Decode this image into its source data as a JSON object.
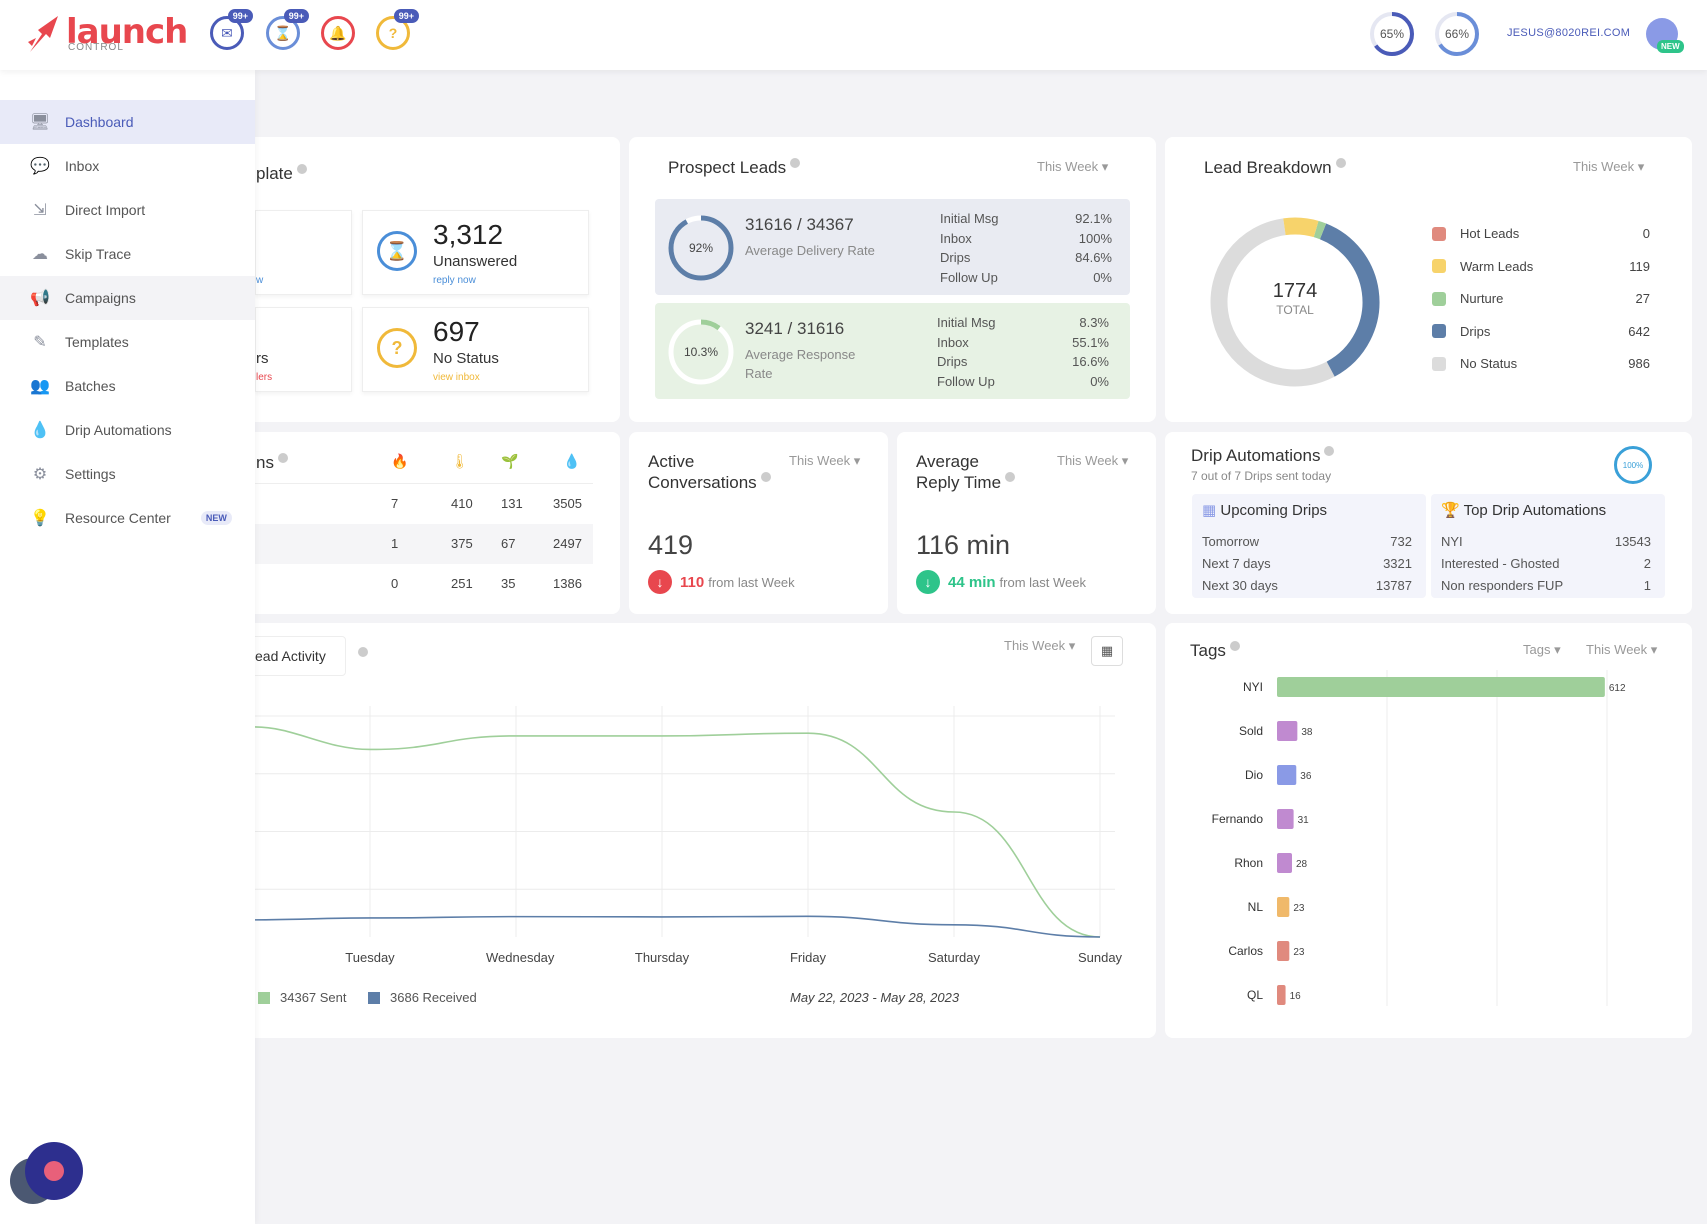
{
  "header": {
    "logo_text": "launch",
    "logo_sub": "CONTROL",
    "notifications": [
      {
        "name": "messages",
        "badge": "99+",
        "color": "#4a5bb8",
        "glyph": "✉"
      },
      {
        "name": "unanswered",
        "badge": "99+",
        "color": "#6a8ed8",
        "glyph": "⌛"
      },
      {
        "name": "alerts",
        "badge": "",
        "color": "#e8474e",
        "glyph": "🔔"
      },
      {
        "name": "no-status",
        "badge": "99+",
        "color": "#f0b93a",
        "glyph": "?"
      }
    ],
    "progress": [
      {
        "label": "65%",
        "value": 0.65,
        "color": "#4a5bb8"
      },
      {
        "label": "66%",
        "value": 0.66,
        "color": "#6a8ed8"
      }
    ],
    "user_email": "JESUS@8020REI.COM",
    "new_chip": "NEW"
  },
  "sidebar": {
    "items": [
      {
        "label": "Dashboard",
        "icon": "monitor-icon",
        "glyph": "🖥"
      },
      {
        "label": "Inbox",
        "icon": "chat-icon",
        "glyph": "💬"
      },
      {
        "label": "Direct Import",
        "icon": "import-icon",
        "glyph": "⇲"
      },
      {
        "label": "Skip Trace",
        "icon": "cloud-upload-icon",
        "glyph": "☁"
      },
      {
        "label": "Campaigns",
        "icon": "megaphone-icon",
        "glyph": "📢"
      },
      {
        "label": "Templates",
        "icon": "edit-icon",
        "glyph": "✎"
      },
      {
        "label": "Batches",
        "icon": "users-icon",
        "glyph": "👥"
      },
      {
        "label": "Drip Automations",
        "icon": "drop-icon",
        "glyph": "💧"
      },
      {
        "label": "Settings",
        "icon": "gear-icon",
        "glyph": "⚙"
      },
      {
        "label": "Resource Center",
        "icon": "lightbulb-icon",
        "glyph": "💡",
        "badge": "NEW"
      }
    ]
  },
  "template_card": {
    "title": "plate",
    "left_top_link": "w",
    "left_bottom_text": "rs",
    "left_bottom_link": "lers",
    "unanswered": {
      "value": "3,312",
      "label": "Unanswered",
      "link": "reply now"
    },
    "no_status": {
      "value": "697",
      "label": "No Status",
      "link": "view inbox"
    }
  },
  "prospect_leads": {
    "title": "Prospect Leads",
    "period": "This Week",
    "delivery": {
      "pct_label": "92%",
      "pct": 0.92,
      "main": "31616 / 34367",
      "sub": "Average Delivery Rate",
      "stats": [
        {
          "label": "Initial Msg",
          "value": "92.1%"
        },
        {
          "label": "Inbox",
          "value": "100%"
        },
        {
          "label": "Drips",
          "value": "84.6%"
        },
        {
          "label": "Follow Up",
          "value": "0%"
        }
      ]
    },
    "response": {
      "pct_label": "10.3%",
      "pct": 0.103,
      "main": "3241 / 31616",
      "sub": "Average Response Rate",
      "stats": [
        {
          "label": "Initial Msg",
          "value": "8.3%"
        },
        {
          "label": "Inbox",
          "value": "55.1%"
        },
        {
          "label": "Drips",
          "value": "16.6%"
        },
        {
          "label": "Follow Up",
          "value": "0%"
        }
      ]
    }
  },
  "lead_breakdown": {
    "title": "Lead Breakdown",
    "period": "This Week",
    "total": "1774",
    "total_label": "TOTAL",
    "items": [
      {
        "label": "Hot Leads",
        "value": 0,
        "color": "#e08a7e"
      },
      {
        "label": "Warm Leads",
        "value": 119,
        "color": "#f7d36b"
      },
      {
        "label": "Nurture",
        "value": 27,
        "color": "#9fcf9a"
      },
      {
        "label": "Drips",
        "value": 642,
        "color": "#5d7ea8"
      },
      {
        "label": "No Status",
        "value": 986,
        "color": "#dcdcdc"
      }
    ]
  },
  "campaigns": {
    "title": "ns",
    "icons": [
      {
        "name": "fire-icon",
        "glyph": "🔥",
        "color": "#e8474e"
      },
      {
        "name": "thermometer-icon",
        "glyph": "🌡",
        "color": "#f0b93a"
      },
      {
        "name": "sprout-icon",
        "glyph": "🌱",
        "color": "#5aa85a"
      },
      {
        "name": "drop-icon",
        "glyph": "💧",
        "color": "#4a8ed8"
      }
    ],
    "rows": [
      [
        "7",
        "410",
        "131",
        "3505"
      ],
      [
        "1",
        "375",
        "67",
        "2497"
      ],
      [
        "0",
        "251",
        "35",
        "1386"
      ]
    ]
  },
  "active_conversations": {
    "title_line1": "Active",
    "title_line2": "Conversations",
    "period": "This Week",
    "value": "419",
    "delta": "110",
    "delta_suffix": "from last Week",
    "delta_color": "#e8474e"
  },
  "reply_time": {
    "title_line1": "Average",
    "title_line2": "Reply Time",
    "period": "This Week",
    "value": "116 min",
    "delta": "44 min",
    "delta_suffix": "from last Week",
    "delta_color": "#2ec48a"
  },
  "drip_automations": {
    "title": "Drip Automations",
    "subtitle": "7 out of 7 Drips sent today",
    "ring_label": "100%",
    "upcoming": {
      "title": "Upcoming Drips",
      "rows": [
        {
          "label": "Tomorrow",
          "value": "732"
        },
        {
          "label": "Next 7 days",
          "value": "3321"
        },
        {
          "label": "Next 30 days",
          "value": "13787"
        }
      ]
    },
    "top": {
      "title": "Top Drip Automations",
      "rows": [
        {
          "label": "NYI",
          "value": "13543"
        },
        {
          "label": "Interested - Ghosted",
          "value": "2"
        },
        {
          "label": "Non responders FUP",
          "value": "1"
        }
      ]
    }
  },
  "lead_activity": {
    "tab_label": "ead Activity",
    "period": "This Week",
    "legend_sent": "34367 Sent",
    "legend_received": "3686 Received",
    "date_range": "May 22, 2023 - May 28, 2023"
  },
  "tags": {
    "title": "Tags",
    "filter": "Tags",
    "period": "This Week"
  },
  "chart_data": [
    {
      "type": "line",
      "categories": [
        "Tuesday",
        "Wednesday",
        "Thursday",
        "Friday",
        "Saturday",
        "Sunday"
      ],
      "series": [
        {
          "name": "34367 Sent",
          "color": "#9fcf9a",
          "values": [
            6900,
            7400,
            7400,
            7500,
            4600,
            0
          ]
        },
        {
          "name": "3686 Received",
          "color": "#5d7ea8",
          "values": [
            700,
            750,
            740,
            760,
            450,
            0
          ]
        }
      ],
      "ylim": [
        0,
        8500
      ]
    },
    {
      "type": "bar",
      "orientation": "horizontal",
      "categories": [
        "NYI",
        "Sold",
        "Dio",
        "Fernando",
        "Rhon",
        "NL",
        "Carlos",
        "QL"
      ],
      "values": [
        612,
        38,
        36,
        31,
        28,
        23,
        23,
        16
      ],
      "colors": [
        "#9fcf9a",
        "#c08ad0",
        "#8a9ae6",
        "#c08ad0",
        "#c08ad0",
        "#f0b96a",
        "#e08a7e",
        "#e08a7e"
      ],
      "xlim": [
        0,
        700
      ]
    }
  ]
}
